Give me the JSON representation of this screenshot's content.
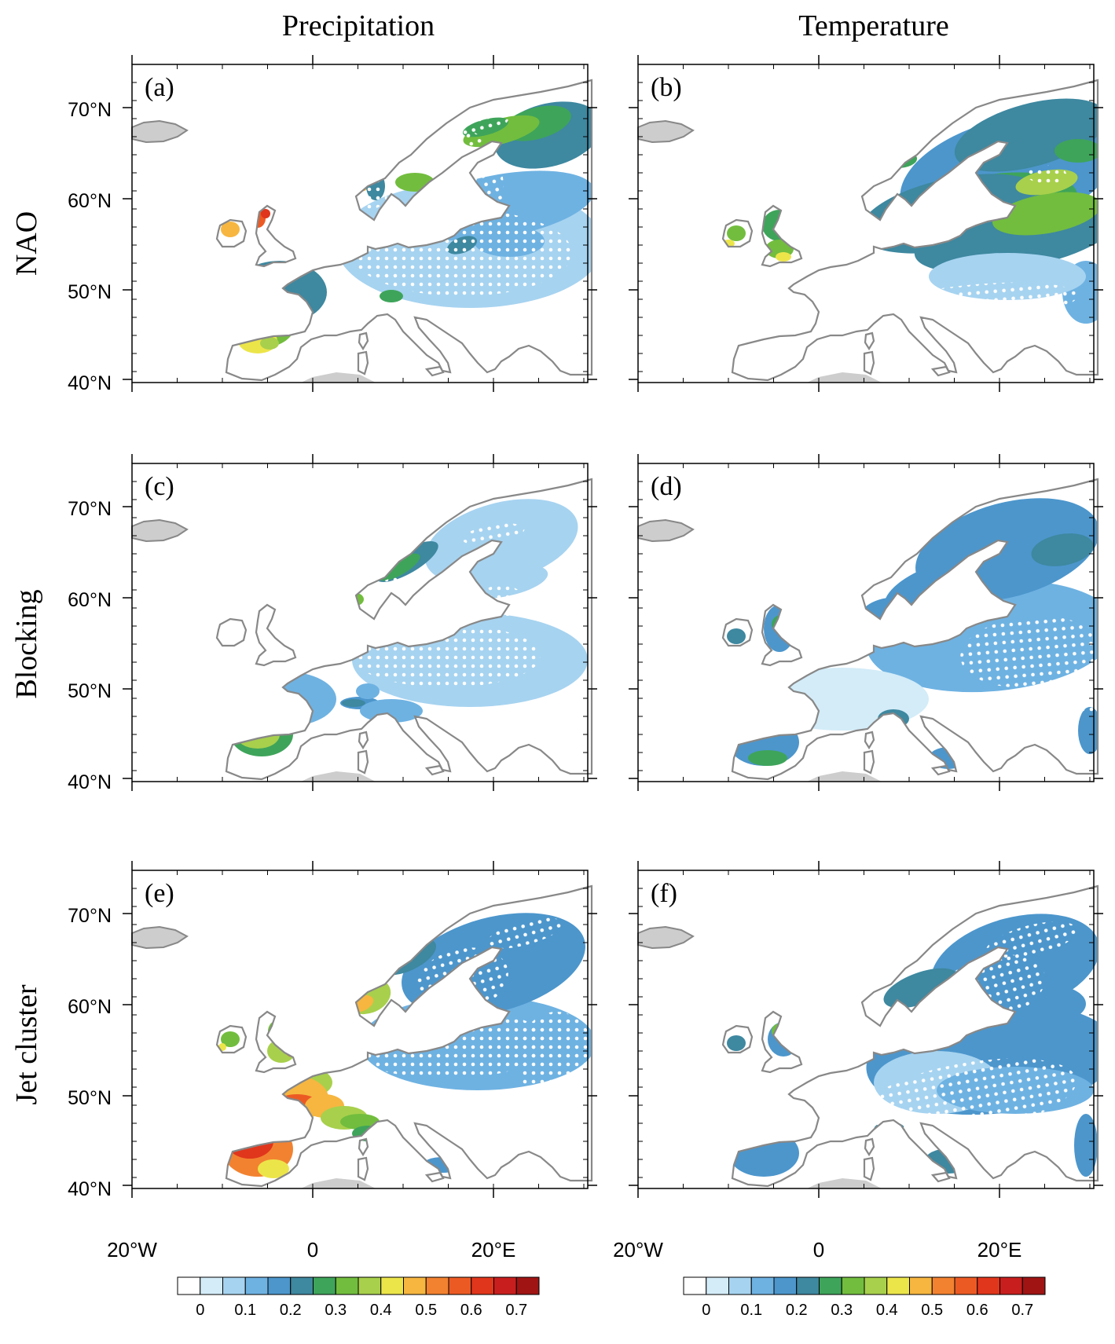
{
  "figure": {
    "column_titles": [
      "Precipitation",
      "Temperature"
    ],
    "row_titles": [
      "NAO",
      "Blocking",
      "Jet cluster"
    ],
    "panels": [
      {
        "label": "(a)",
        "field": "Precipitation",
        "index": "NAO"
      },
      {
        "label": "(b)",
        "field": "Temperature",
        "index": "NAO"
      },
      {
        "label": "(c)",
        "field": "Precipitation",
        "index": "Blocking"
      },
      {
        "label": "(d)",
        "field": "Temperature",
        "index": "Blocking"
      },
      {
        "label": "(e)",
        "field": "Precipitation",
        "index": "Jet cluster"
      },
      {
        "label": "(f)",
        "field": "Temperature",
        "index": "Jet cluster"
      }
    ],
    "lat_ticks": [
      "70°N",
      "60°N",
      "50°N",
      "40°N"
    ],
    "lon_ticks": [
      "20°W",
      "0",
      "20°E"
    ],
    "colorbar": {
      "tick_labels": [
        "0",
        "0.1",
        "0.2",
        "0.3",
        "0.4",
        "0.5",
        "0.6",
        "0.7"
      ],
      "colors": [
        "#ffffff",
        "#d3ecf8",
        "#a6d3f0",
        "#6eb2e2",
        "#4c96cc",
        "#3e88a0",
        "#3ea45a",
        "#72bd3e",
        "#a8d04c",
        "#ece54a",
        "#f6b640",
        "#f28230",
        "#ec5a24",
        "#e0361c",
        "#c81e1e",
        "#a01414"
      ]
    },
    "colors": {
      "coast": "#888888",
      "land_outside": "#cdcdcd",
      "stipple": "#ffffff"
    }
  }
}
